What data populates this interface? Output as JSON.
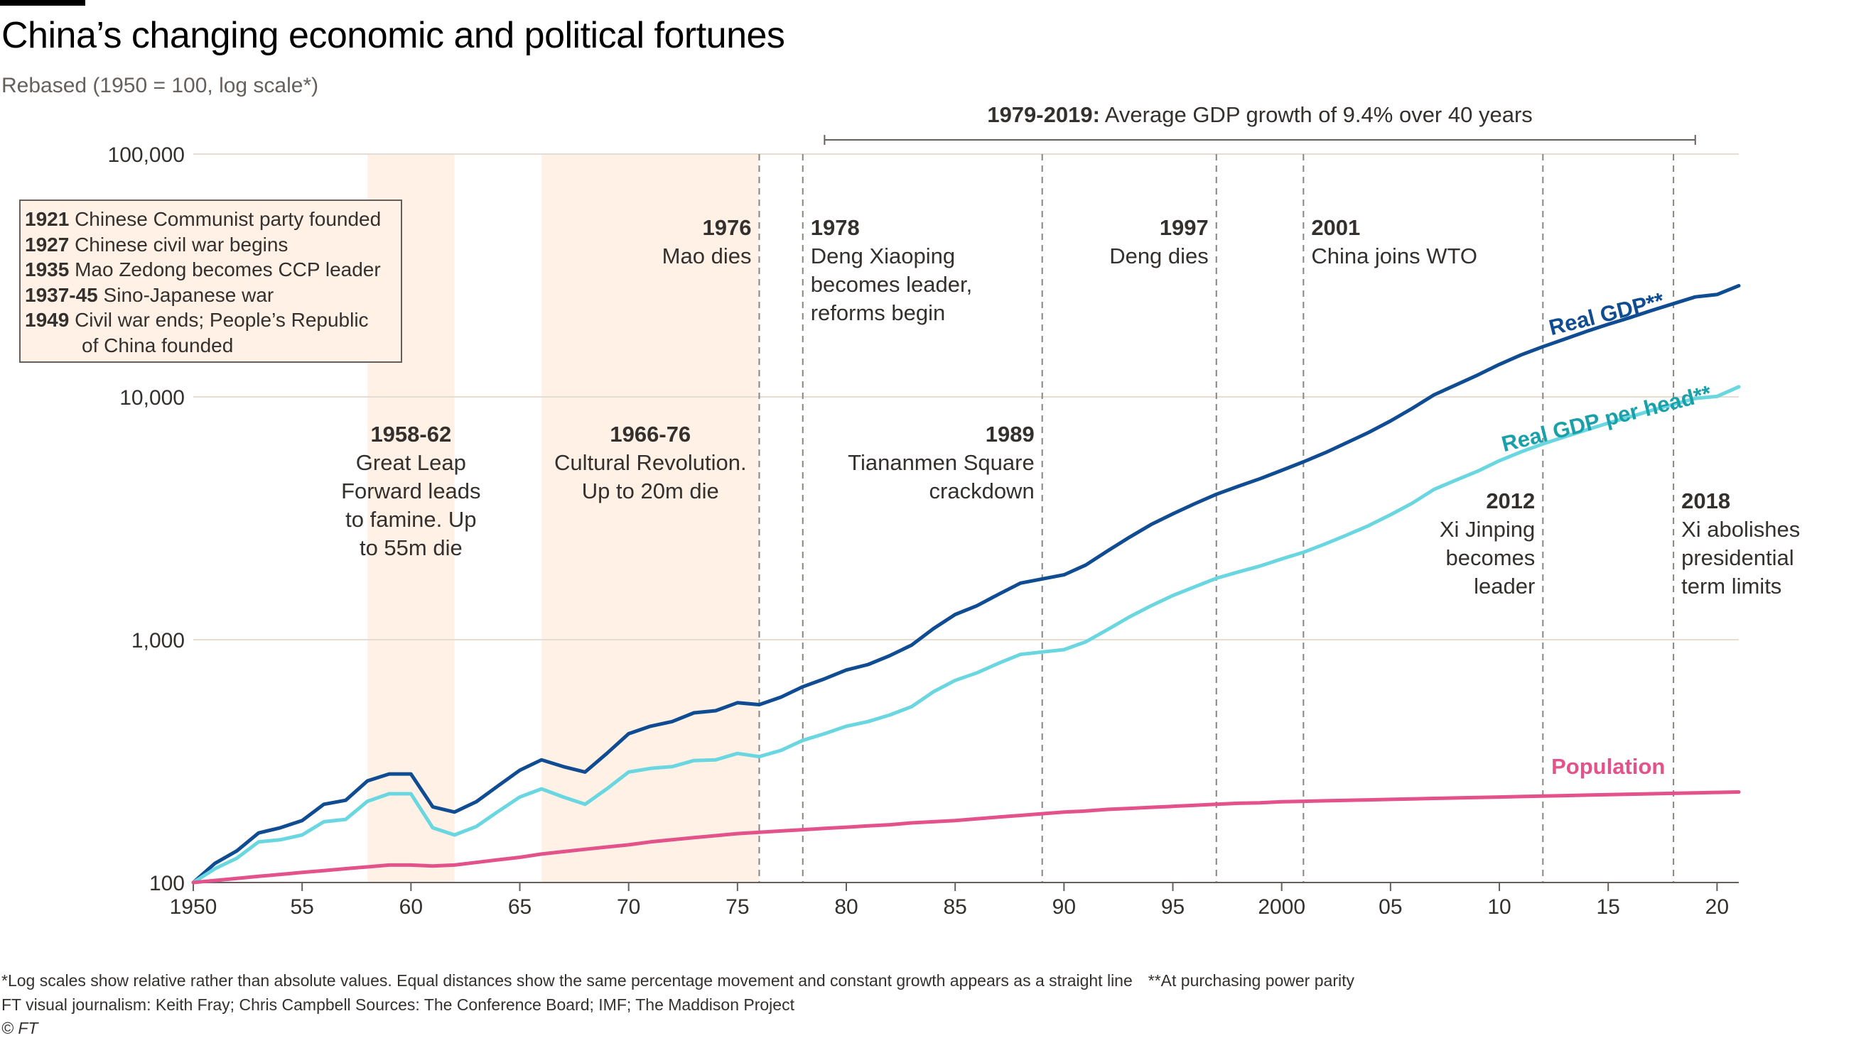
{
  "header": {
    "title": "China’s changing economic and political fortunes",
    "subtitle": "Rebased (1950 = 100, log scale*)"
  },
  "colors": {
    "real_gdp": "#0f4c92",
    "real_gdp_per_head": "#69d6e0",
    "population": "#e3528a",
    "shade": "#fff1e6",
    "gridline": "#e5dcd3",
    "event_line": "#8a8580",
    "text": "#33302e",
    "label_gdp": "#0f4c92",
    "label_gdp_per_head": "#1aa0a8",
    "label_population": "#e3528a"
  },
  "key_events": [
    {
      "year": "1921",
      "text": "Chinese Communist party founded"
    },
    {
      "year": "1927",
      "text": "Chinese civil war begins"
    },
    {
      "year": "1935",
      "text": "Mao Zedong becomes CCP leader"
    },
    {
      "year": "1937-45",
      "text": "Sino-Japanese war"
    },
    {
      "year": "1949",
      "text": "Civil war ends; People’s Republic"
    },
    {
      "year": "",
      "text": "of China founded"
    }
  ],
  "chart_data": {
    "type": "line",
    "title": "China’s changing economic and political fortunes",
    "subtitle": "Rebased (1950 = 100, log scale*)",
    "y_scale": "log",
    "ylim": [
      100,
      100000
    ],
    "xlim": [
      1950,
      2021
    ],
    "y_ticks": [
      {
        "value": 100,
        "label": "100"
      },
      {
        "value": 1000,
        "label": "1,000"
      },
      {
        "value": 10000,
        "label": "10,000"
      },
      {
        "value": 100000,
        "label": "100,000"
      }
    ],
    "x_ticks": [
      {
        "value": 1950,
        "label": "1950"
      },
      {
        "value": 1955,
        "label": "55"
      },
      {
        "value": 1960,
        "label": "60"
      },
      {
        "value": 1965,
        "label": "65"
      },
      {
        "value": 1970,
        "label": "70"
      },
      {
        "value": 1975,
        "label": "75"
      },
      {
        "value": 1980,
        "label": "80"
      },
      {
        "value": 1985,
        "label": "85"
      },
      {
        "value": 1990,
        "label": "90"
      },
      {
        "value": 1995,
        "label": "95"
      },
      {
        "value": 2000,
        "label": "2000"
      },
      {
        "value": 2005,
        "label": "05"
      },
      {
        "value": 2010,
        "label": "10"
      },
      {
        "value": 2015,
        "label": "15"
      },
      {
        "value": 2020,
        "label": "20"
      }
    ],
    "grid": true,
    "x": [
      1950,
      1951,
      1952,
      1953,
      1954,
      1955,
      1956,
      1957,
      1958,
      1959,
      1960,
      1961,
      1962,
      1963,
      1964,
      1965,
      1966,
      1967,
      1968,
      1969,
      1970,
      1971,
      1972,
      1973,
      1974,
      1975,
      1976,
      1977,
      1978,
      1979,
      1980,
      1981,
      1982,
      1983,
      1984,
      1985,
      1986,
      1987,
      1988,
      1989,
      1990,
      1991,
      1992,
      1993,
      1994,
      1995,
      1996,
      1997,
      1998,
      1999,
      2000,
      2001,
      2002,
      2003,
      2004,
      2005,
      2006,
      2007,
      2008,
      2009,
      2010,
      2011,
      2012,
      2013,
      2014,
      2015,
      2016,
      2017,
      2018,
      2019,
      2020,
      2021
    ],
    "series": [
      {
        "name": "Real GDP**",
        "key": "gdp",
        "label_year": 2015,
        "label_value": 20500,
        "values": [
          100,
          120,
          135,
          160,
          168,
          180,
          210,
          218,
          262,
          280,
          280,
          205,
          195,
          215,
          250,
          290,
          320,
          300,
          285,
          340,
          410,
          440,
          460,
          500,
          510,
          550,
          540,
          580,
          640,
          690,
          750,
          790,
          860,
          950,
          1110,
          1270,
          1380,
          1540,
          1710,
          1780,
          1850,
          2030,
          2320,
          2640,
          2980,
          3300,
          3630,
          3970,
          4280,
          4600,
          4980,
          5400,
          5890,
          6480,
          7140,
          7960,
          8970,
          10200,
          11200,
          12300,
          13600,
          14900,
          16100,
          17300,
          18600,
          19900,
          21200,
          22700,
          24200,
          25800,
          26400,
          28700
        ]
      },
      {
        "name": "Real GDP per head**",
        "key": "gdp_per_head",
        "label_year": 2015,
        "label_value": 7600,
        "values": [
          100,
          114,
          126,
          147,
          150,
          157,
          178,
          182,
          216,
          232,
          232,
          168,
          157,
          170,
          196,
          225,
          243,
          225,
          210,
          243,
          285,
          295,
          300,
          318,
          320,
          340,
          330,
          350,
          385,
          410,
          440,
          460,
          490,
          530,
          610,
          680,
          730,
          800,
          870,
          890,
          910,
          980,
          1100,
          1240,
          1380,
          1520,
          1650,
          1790,
          1900,
          2010,
          2150,
          2290,
          2480,
          2700,
          2950,
          3270,
          3650,
          4160,
          4540,
          4940,
          5460,
          5940,
          6400,
          6850,
          7310,
          7800,
          8270,
          8800,
          9320,
          9860,
          10050,
          11000
        ]
      },
      {
        "name": "Population",
        "key": "population",
        "label_year": 2015,
        "label_value": 280,
        "values": [
          100,
          102,
          104,
          106,
          108,
          110,
          112,
          114,
          116,
          118,
          118,
          117,
          118,
          121,
          124,
          127,
          131,
          134,
          137,
          140,
          143,
          147,
          150,
          153,
          156,
          159,
          161,
          163,
          165,
          167,
          169,
          171,
          173,
          176,
          178,
          180,
          183,
          186,
          189,
          192,
          195,
          197,
          200,
          202,
          204,
          206,
          208,
          210,
          212,
          213,
          215,
          216,
          217,
          218,
          219,
          220,
          221,
          222,
          223,
          224,
          225,
          226,
          227,
          228,
          229,
          230,
          231,
          232,
          233,
          234,
          235,
          236
        ]
      }
    ],
    "shaded_periods": [
      {
        "from": 1958,
        "to": 1962,
        "label_year": "1958-62",
        "label_lines": [
          "Great Leap",
          "Forward leads",
          "to famine. Up",
          "to 55m die"
        ]
      },
      {
        "from": 1966,
        "to": 1976,
        "label_year": "1966-76",
        "label_lines": [
          "Cultural Revolution.",
          "Up to 20m die"
        ]
      }
    ],
    "events": [
      {
        "x": 1976,
        "year": "1976",
        "lines": [
          "Mao dies"
        ],
        "align": "right",
        "row": "top"
      },
      {
        "x": 1978,
        "year": "1978",
        "lines": [
          "Deng Xiaoping",
          "becomes leader,",
          "reforms begin"
        ],
        "align": "left",
        "row": "top"
      },
      {
        "x": 1989,
        "year": "1989",
        "lines": [
          "Tiananmen Square",
          "crackdown"
        ],
        "align": "right",
        "row": "mid"
      },
      {
        "x": 1997,
        "year": "1997",
        "lines": [
          "Deng dies"
        ],
        "align": "right",
        "row": "top"
      },
      {
        "x": 2001,
        "year": "2001",
        "lines": [
          "China joins WTO"
        ],
        "align": "left",
        "row": "top"
      },
      {
        "x": 2012,
        "year": "2012",
        "lines": [
          "Xi Jinping",
          "becomes",
          "leader"
        ],
        "align": "right",
        "row": "low"
      },
      {
        "x": 2018,
        "year": "2018",
        "lines": [
          "Xi abolishes",
          "presidential",
          "term limits"
        ],
        "align": "left",
        "row": "low"
      }
    ],
    "growth_annotation": {
      "from": 1979,
      "to": 2019,
      "bold": "1979-2019:",
      "text": " Average GDP growth of 9.4% over 40 years"
    }
  },
  "footnotes": {
    "log_note": "*Log scales show relative rather than absolute values. Equal distances show the same percentage movement and constant growth appears as a straight line",
    "ppp_note": "**At purchasing power parity",
    "credits": "FT visual journalism: Keith Fray; Chris Campbell    Sources: The Conference Board; IMF; The Maddison Project",
    "copyright": "© FT"
  }
}
